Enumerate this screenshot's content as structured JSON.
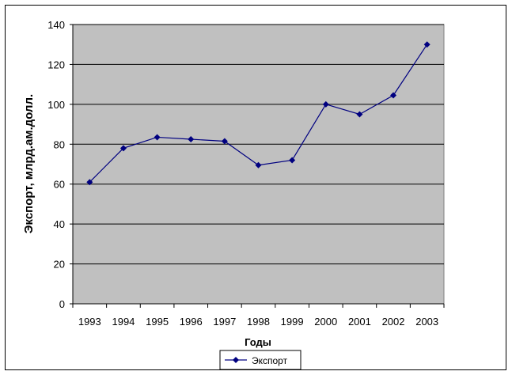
{
  "chart_data": {
    "type": "line",
    "title": "",
    "xlabel": "Годы",
    "ylabel": "Экспорт, млрд.ам.долл.",
    "categories": [
      "1993",
      "1994",
      "1995",
      "1996",
      "1997",
      "1998",
      "1999",
      "2000",
      "2001",
      "2002",
      "2003"
    ],
    "series": [
      {
        "name": "Экспорт",
        "values": [
          61,
          78,
          83.5,
          82.5,
          81.5,
          69.5,
          72,
          100,
          95,
          104.5,
          130
        ]
      }
    ],
    "ylim": [
      0,
      140
    ],
    "yticks": [
      0,
      20,
      40,
      60,
      80,
      100,
      120,
      140
    ],
    "grid": true,
    "legend": "bottom",
    "colors": {
      "plot_bg": "#c0c0c0",
      "line": "#000080",
      "marker": "#000080",
      "grid": "#000000"
    }
  }
}
